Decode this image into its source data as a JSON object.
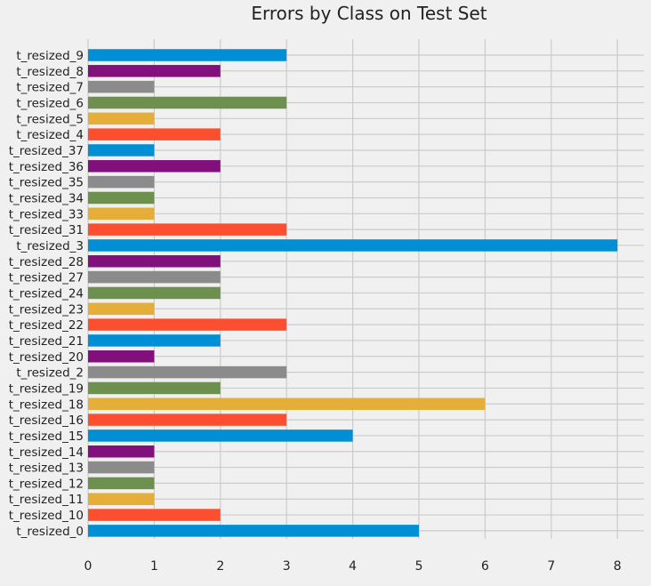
{
  "chart_data": {
    "type": "bar",
    "orientation": "horizontal",
    "title": "Errors by Class on Test Set",
    "xlabel": "",
    "ylabel": "",
    "xlim": [
      0,
      8.4
    ],
    "xticks": [
      "0",
      "1",
      "2",
      "3",
      "4",
      "5",
      "6",
      "7",
      "8"
    ],
    "grid": true,
    "categories": [
      "t_resized_0",
      "t_resized_10",
      "t_resized_11",
      "t_resized_12",
      "t_resized_13",
      "t_resized_14",
      "t_resized_15",
      "t_resized_16",
      "t_resized_18",
      "t_resized_19",
      "t_resized_2",
      "t_resized_20",
      "t_resized_21",
      "t_resized_22",
      "t_resized_23",
      "t_resized_24",
      "t_resized_27",
      "t_resized_28",
      "t_resized_3",
      "t_resized_31",
      "t_resized_33",
      "t_resized_34",
      "t_resized_35",
      "t_resized_36",
      "t_resized_37",
      "t_resized_4",
      "t_resized_5",
      "t_resized_6",
      "t_resized_7",
      "t_resized_8",
      "t_resized_9"
    ],
    "values": [
      5,
      2,
      1,
      1,
      1,
      1,
      4,
      3,
      6,
      2,
      3,
      1,
      2,
      3,
      1,
      2,
      2,
      2,
      8,
      3,
      1,
      1,
      1,
      2,
      1,
      2,
      1,
      3,
      1,
      2,
      3
    ]
  },
  "colors": {
    "background": "#f0f0f0",
    "grid": "#cbcbcb",
    "palette": [
      "#008fd5",
      "#fc4f30",
      "#e5ae38",
      "#6d904f",
      "#8b8b8b",
      "#810f7c"
    ]
  }
}
